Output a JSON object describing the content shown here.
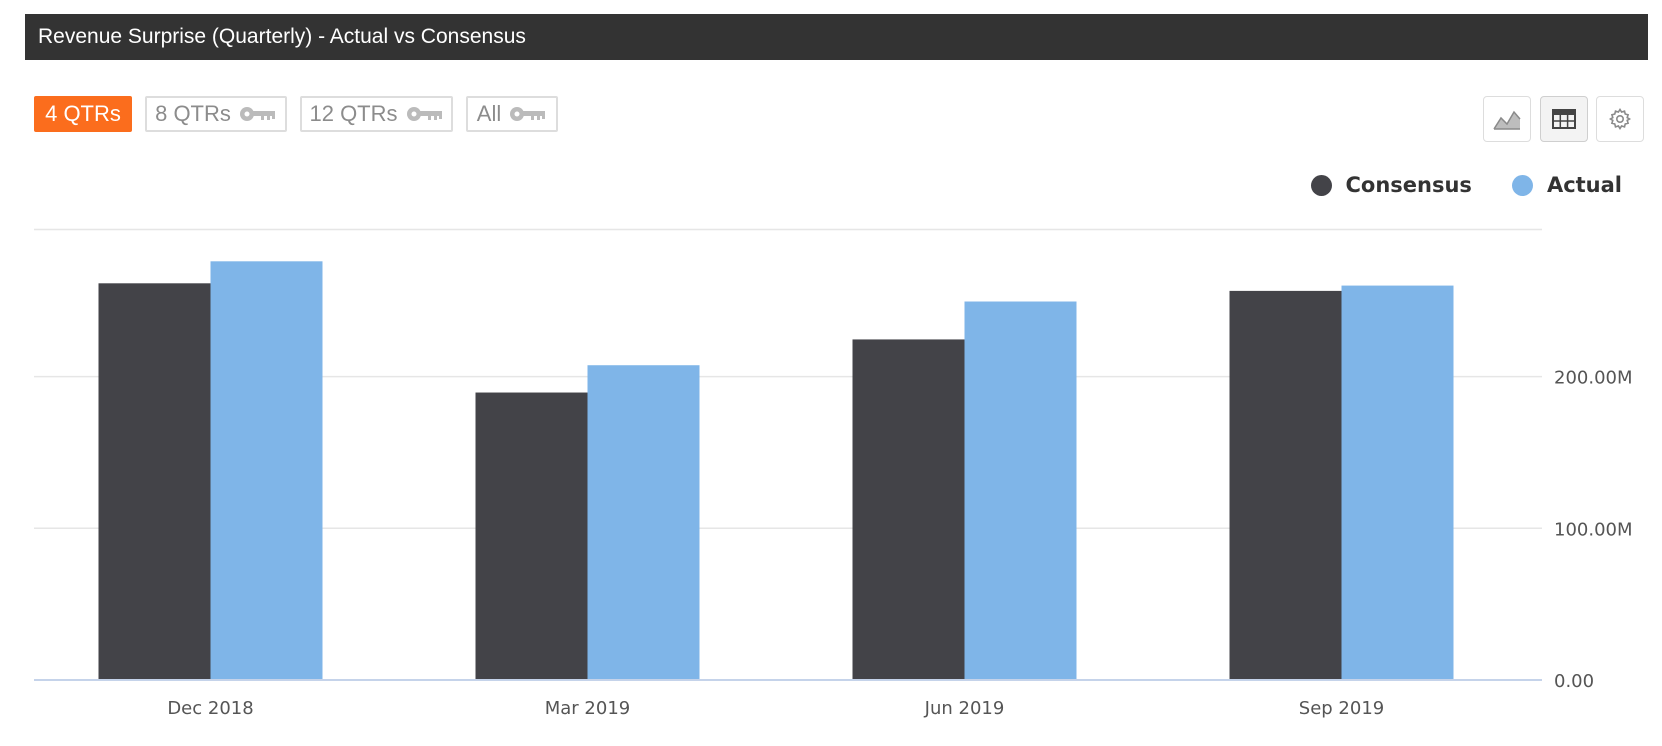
{
  "header": {
    "title": "Revenue Surprise (Quarterly) - Actual vs Consensus"
  },
  "range_tabs": [
    {
      "label": "4 QTRs",
      "active": true,
      "locked": false
    },
    {
      "label": "8 QTRs",
      "active": false,
      "locked": true
    },
    {
      "label": "12 QTRs",
      "active": false,
      "locked": true
    },
    {
      "label": "All",
      "active": false,
      "locked": true
    }
  ],
  "toolbar": {
    "buttons": [
      {
        "name": "area-chart-view",
        "icon": "area-chart-icon",
        "selected": false
      },
      {
        "name": "table-view",
        "icon": "table-grid-icon",
        "selected": true
      },
      {
        "name": "settings",
        "icon": "gear-icon",
        "selected": false
      }
    ]
  },
  "colors": {
    "consensus": "#434348",
    "actual": "#7fb5e8",
    "accent": "#fb6d1d",
    "header_bg": "#333333"
  },
  "chart_data": {
    "type": "bar",
    "title": "Revenue Surprise (Quarterly) - Actual vs Consensus",
    "categories": [
      "Dec 2018",
      "Mar 2019",
      "Jun 2019",
      "Sep 2019"
    ],
    "series": [
      {
        "name": "Consensus",
        "values": [
          261.5,
          189.5,
          224.5,
          256.5
        ]
      },
      {
        "name": "Actual",
        "values": [
          276.0,
          207.5,
          249.5,
          260.0
        ]
      }
    ],
    "y_ticks": [
      {
        "value": 0,
        "label": "0.00"
      },
      {
        "value": 100,
        "label": "100.00M"
      },
      {
        "value": 200,
        "label": "200.00M"
      }
    ],
    "ylim": [
      0,
      300
    ],
    "yaxis_side": "right",
    "grid": true,
    "legend": "top-right",
    "xlabel": "",
    "ylabel": ""
  }
}
